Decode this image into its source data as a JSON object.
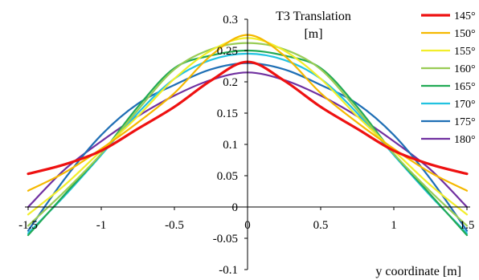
{
  "chart_data": {
    "type": "line",
    "title": "T3 Translation",
    "title_unit": "[m]",
    "xlabel": "y coordinate [m]",
    "ylabel": "",
    "xlim": [
      -1.5,
      1.5
    ],
    "ylim": [
      -0.1,
      0.3
    ],
    "x_ticks": [
      "-1.5",
      "-1",
      "-0.5",
      "0",
      "0.5",
      "1",
      "1.5"
    ],
    "y_ticks": [
      "-0.1",
      "-0.05",
      "0",
      "0.05",
      "0.1",
      "0.15",
      "0.2",
      "0.25",
      "0.3"
    ],
    "x_tick_values": [
      -1.5,
      -1,
      -0.5,
      0,
      0.5,
      1,
      1.5
    ],
    "y_tick_values": [
      -0.1,
      -0.05,
      0,
      0.05,
      0.1,
      0.15,
      0.2,
      0.25,
      0.3
    ],
    "grid": false,
    "legend_position": "right",
    "x": [
      -1.5,
      -1.25,
      -1.0,
      -0.75,
      -0.5,
      -0.25,
      0.0,
      0.25,
      0.5,
      0.75,
      1.0,
      1.25,
      1.5
    ],
    "series": [
      {
        "name": "145°",
        "color": "#ee1111",
        "width": 3.2,
        "values": [
          0.053,
          0.068,
          0.09,
          0.125,
          0.16,
          0.202,
          0.232,
          0.202,
          0.16,
          0.125,
          0.09,
          0.068,
          0.053
        ]
      },
      {
        "name": "150°",
        "color": "#f5b800",
        "width": 2.2,
        "values": [
          0.026,
          0.055,
          0.093,
          0.135,
          0.182,
          0.242,
          0.275,
          0.242,
          0.182,
          0.135,
          0.093,
          0.055,
          0.026
        ]
      },
      {
        "name": "155°",
        "color": "#f2ee2a",
        "width": 2.2,
        "values": [
          -0.012,
          0.035,
          0.09,
          0.145,
          0.205,
          0.25,
          0.27,
          0.25,
          0.205,
          0.145,
          0.09,
          0.035,
          -0.012
        ]
      },
      {
        "name": "160°",
        "color": "#99cc55",
        "width": 2.2,
        "values": [
          -0.03,
          0.025,
          0.085,
          0.155,
          0.22,
          0.252,
          0.262,
          0.252,
          0.22,
          0.155,
          0.085,
          0.025,
          -0.03
        ]
      },
      {
        "name": "165°",
        "color": "#22aa55",
        "width": 2.2,
        "values": [
          -0.045,
          0.02,
          0.085,
          0.16,
          0.222,
          0.242,
          0.25,
          0.242,
          0.222,
          0.16,
          0.085,
          0.02,
          -0.045
        ]
      },
      {
        "name": "170°",
        "color": "#22c2e0",
        "width": 2.2,
        "values": [
          -0.042,
          0.018,
          0.083,
          0.15,
          0.205,
          0.235,
          0.245,
          0.235,
          0.205,
          0.15,
          0.083,
          0.018,
          -0.042
        ]
      },
      {
        "name": "175°",
        "color": "#1f6fb5",
        "width": 2.2,
        "values": [
          -0.038,
          0.045,
          0.115,
          0.165,
          0.195,
          0.22,
          0.23,
          0.22,
          0.195,
          0.165,
          0.115,
          0.045,
          -0.038
        ]
      },
      {
        "name": "180°",
        "color": "#7030a0",
        "width": 2.2,
        "values": [
          0.0,
          0.06,
          0.105,
          0.145,
          0.178,
          0.203,
          0.215,
          0.203,
          0.178,
          0.145,
          0.105,
          0.06,
          0.0
        ]
      }
    ]
  }
}
